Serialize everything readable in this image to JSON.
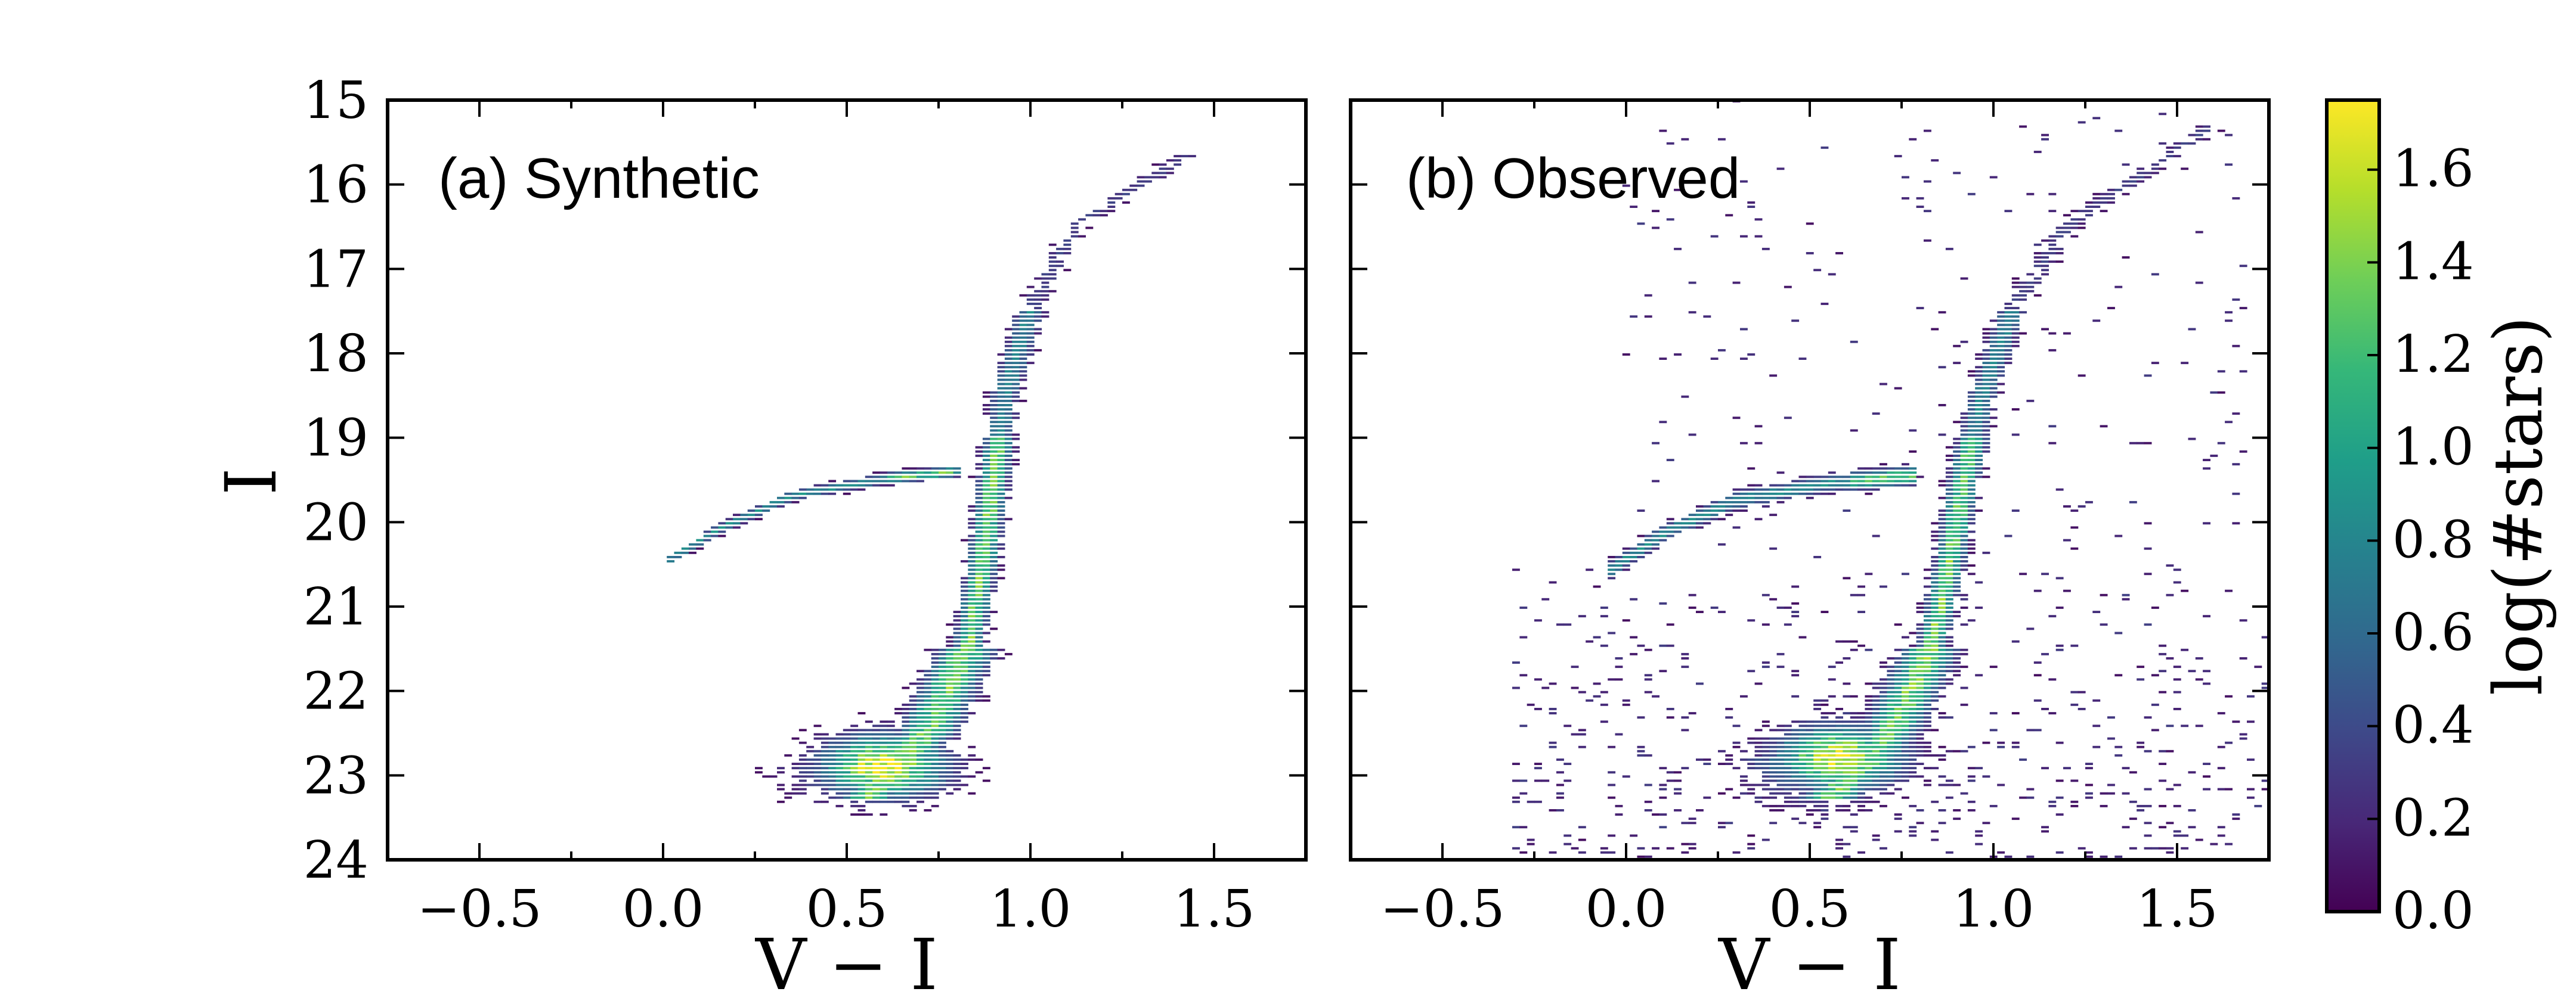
{
  "chart_data": {
    "type": "heatmap",
    "subtype": "hess-diagram (2D histogram color-magnitude diagram)",
    "panels": [
      {
        "id": "synthetic",
        "panel_label": "(a) Synthetic",
        "xlabel": "V − I",
        "ylabel": "I",
        "xlim": [
          -0.75,
          1.75
        ],
        "ylim": [
          24,
          15
        ],
        "xticks": [
          -0.5,
          0.0,
          0.5,
          1.0,
          1.5
        ],
        "xtick_labels": [
          "−0.5",
          "0.0",
          "0.5",
          "1.0",
          "1.5"
        ],
        "yticks": [
          15,
          16,
          17,
          18,
          19,
          20,
          21,
          22,
          23,
          24
        ],
        "ytick_labels": [
          "15",
          "16",
          "17",
          "18",
          "19",
          "20",
          "21",
          "22",
          "23",
          "24"
        ],
        "features": [
          {
            "name": "main-sequence-turnoff",
            "x": 0.6,
            "y": 22.9,
            "log_count": 1.7
          },
          {
            "name": "horizontal-branch",
            "x_range": [
              0.02,
              0.82
            ],
            "y_range": [
              20.4,
              19.4
            ]
          },
          {
            "name": "red-giant-branch",
            "x_range": [
              0.6,
              1.5
            ],
            "y_range": [
              22.5,
              15.6
            ]
          }
        ]
      },
      {
        "id": "observed",
        "panel_label": "(b) Observed",
        "xlabel": "V − I",
        "ylabel": "",
        "xlim": [
          -0.75,
          1.75
        ],
        "ylim": [
          24,
          15
        ],
        "xticks": [
          -0.5,
          0.0,
          0.5,
          1.0,
          1.5
        ],
        "xtick_labels": [
          "−0.5",
          "0.0",
          "0.5",
          "1.0",
          "1.5"
        ],
        "yticks": [
          15,
          16,
          17,
          18,
          19,
          20,
          21,
          22,
          23,
          24
        ],
        "ytick_labels": [],
        "features": [
          {
            "name": "main-sequence-turnoff",
            "x": 0.58,
            "y": 22.8,
            "log_count": 1.7
          },
          {
            "name": "horizontal-branch",
            "x_range": [
              -0.05,
              0.8
            ],
            "y_range": [
              20.6,
              19.4
            ]
          },
          {
            "name": "red-giant-branch",
            "x_range": [
              0.6,
              1.65
            ],
            "y_range": [
              22.5,
              15.3
            ]
          },
          {
            "name": "field-contamination",
            "x_range": [
              -0.4,
              1.75
            ],
            "y_range": [
              23.5,
              15.0
            ]
          }
        ]
      }
    ],
    "colorbar": {
      "label": "log(#stars)",
      "colormap": "viridis",
      "range": [
        0.0,
        1.75
      ],
      "ticks": [
        0.0,
        0.2,
        0.4,
        0.6,
        0.8,
        1.0,
        1.2,
        1.4,
        1.6
      ],
      "tick_labels": [
        "0.0",
        "0.2",
        "0.4",
        "0.6",
        "0.8",
        "1.0",
        "1.2",
        "1.4",
        "1.6"
      ]
    },
    "colors": {
      "viridis": [
        "#440154",
        "#482878",
        "#3e4989",
        "#31688e",
        "#26828e",
        "#1f9e89",
        "#35b779",
        "#6ece58",
        "#b5de2b",
        "#fde725"
      ]
    }
  }
}
